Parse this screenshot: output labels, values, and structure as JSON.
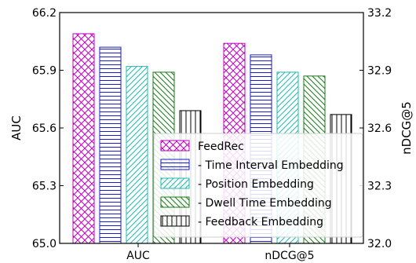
{
  "chart_data": {
    "type": "bar",
    "categories": [
      "AUC",
      "nDCG@5"
    ],
    "series": [
      {
        "name": "FeedRec",
        "values": [
          66.09,
          33.04
        ],
        "color": "#c000c0",
        "pattern": "crosshatch"
      },
      {
        "name": "- Time Interval Embedding",
        "values": [
          66.02,
          32.98
        ],
        "color": "#1a1ad0",
        "pattern": "horizontal"
      },
      {
        "name": "- Position Embedding",
        "values": [
          65.92,
          32.89
        ],
        "color": "#20b8b0",
        "pattern": "diagonal"
      },
      {
        "name": "- Dwell Time Embedding",
        "values": [
          65.89,
          32.87
        ],
        "color": "#1a7a1a",
        "pattern": "backdiagonal"
      },
      {
        "name": "- Feedback Embedding",
        "values": [
          65.69,
          32.67
        ],
        "color": "#000000",
        "pattern": "vertical"
      }
    ],
    "ylabel": "AUC",
    "ylim": [
      65.0,
      66.2
    ],
    "yticks": [
      "65.0",
      "65.3",
      "65.6",
      "65.9",
      "66.2"
    ],
    "y2label": "nDCG@5",
    "y2lim": [
      32.0,
      33.2
    ],
    "y2ticks": [
      "32.0",
      "32.3",
      "32.6",
      "32.9",
      "33.2"
    ],
    "legend_position": "bottom-right",
    "grid": false
  }
}
